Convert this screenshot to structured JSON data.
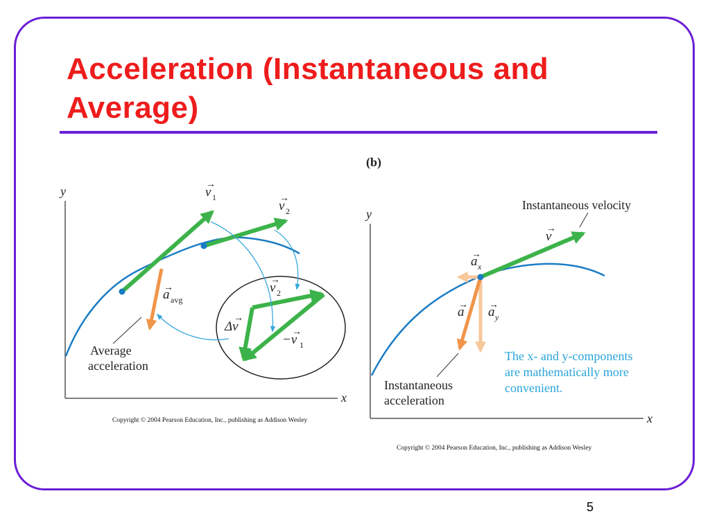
{
  "slide": {
    "title": "Acceleration (Instantaneous and Average)",
    "page_number": "5"
  },
  "colors": {
    "title": "#ee1c1c",
    "frame": "#6a1fd6",
    "curve": "#1a7cc4",
    "velocity": "#3cb34a",
    "acceleration": "#f0954a",
    "component": "#f7c79a",
    "callout_arrow": "#38a8dc",
    "note_text": "#29a3d9"
  },
  "figure_a": {
    "axis_y": "y",
    "axis_x": "x",
    "v1_symbol": "v",
    "v1_sub": "1",
    "v2_symbol": "v",
    "v2_sub": "2",
    "a_avg_symbol": "a",
    "a_avg_sub": "avg",
    "average_label_line1": "Average",
    "average_label_line2": "acceleration",
    "delta_v": "Δv",
    "neg_v1_prefix": "−v",
    "neg_v1_sub": "1",
    "copyright": "Copyright © 2004 Pearson Education, Inc., publishing as Addison Wesley"
  },
  "figure_b": {
    "panel_label": "(b)",
    "axis_y": "y",
    "axis_x": "x",
    "velocity_label": "Instantaneous velocity",
    "v_symbol": "v",
    "ax_symbol": "a",
    "ax_sub": "x",
    "a_symbol": "a",
    "ay_symbol": "a",
    "ay_sub": "y",
    "instant_label_line1": "Instantaneous",
    "instant_label_line2": "acceleration",
    "note_line1": "The x- and y-components",
    "note_line2": "are mathematically more",
    "note_line3": "convenient.",
    "copyright": "Copyright © 2004 Pearson Education, Inc., publishing as Addison Wesley"
  }
}
